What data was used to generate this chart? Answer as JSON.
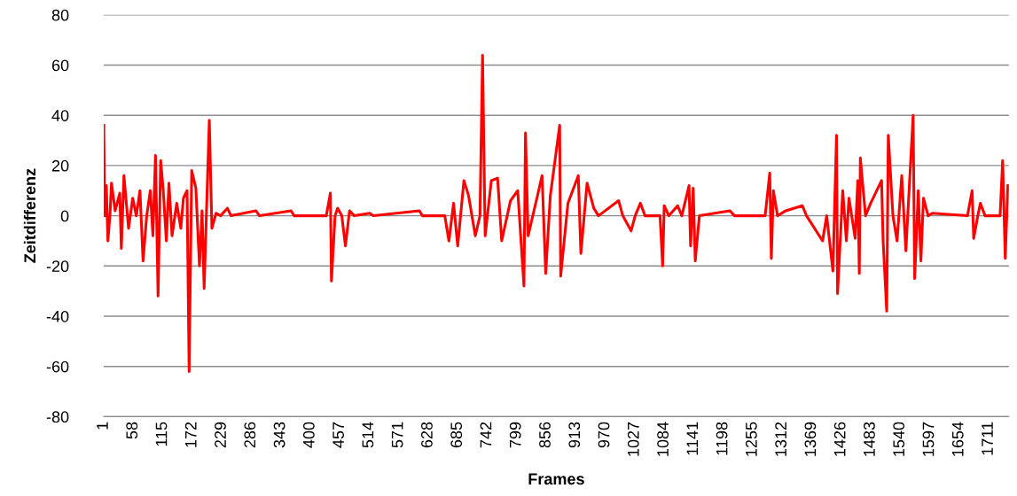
{
  "chart_data": {
    "type": "line",
    "xlabel": "Frames",
    "ylabel": "Zeitdifferenz",
    "xlim": [
      1,
      1750
    ],
    "ylim": [
      -80,
      80
    ],
    "xticks": [
      1,
      58,
      115,
      172,
      229,
      286,
      343,
      400,
      457,
      514,
      571,
      628,
      685,
      742,
      799,
      856,
      913,
      970,
      1027,
      1084,
      1141,
      1198,
      1255,
      1312,
      1369,
      1426,
      1483,
      1540,
      1597,
      1654,
      1711
    ],
    "yticks": [
      -80,
      -60,
      -40,
      -20,
      0,
      20,
      40,
      60,
      80
    ],
    "grid": "y",
    "legend": false,
    "marker": "none",
    "line_style": "solid",
    "series": [
      {
        "color": "#ff0000",
        "x": [
          1,
          3,
          6,
          9,
          13,
          16,
          23,
          32,
          35,
          40,
          49,
          57,
          64,
          71,
          77,
          84,
          91,
          96,
          101,
          106,
          111,
          116,
          122,
          127,
          133,
          142,
          150,
          155,
          162,
          166,
          171,
          179,
          186,
          191,
          195,
          205,
          210,
          218,
          227,
          240,
          247,
          295,
          302,
          363,
          369,
          431,
          439,
          441,
          448,
          453,
          461,
          468,
          476,
          485,
          515,
          522,
          611,
          617,
          660,
          668,
          677,
          685,
          697,
          706,
          719,
          728,
          733,
          738,
          750,
          762,
          770,
          787,
          801,
          813,
          816,
          821,
          838,
          848,
          855,
          864,
          882,
          884,
          898,
          918,
          923,
          935,
          948,
          957,
          996,
          1004,
          1020,
          1028,
          1038,
          1047,
          1076,
          1081,
          1084,
          1093,
          1110,
          1118,
          1132,
          1135,
          1140,
          1144,
          1152,
          1211,
          1220,
          1279,
          1288,
          1291,
          1295,
          1303,
          1319,
          1351,
          1359,
          1390,
          1398,
          1410,
          1417,
          1419,
          1429,
          1436,
          1441,
          1453,
          1458,
          1461,
          1463,
          1473,
          1483,
          1504,
          1507,
          1514,
          1517,
          1526,
          1534,
          1543,
          1551,
          1565,
          1568,
          1575,
          1580,
          1585,
          1594,
          1602,
          1670,
          1679,
          1682,
          1690,
          1695,
          1704,
          1733,
          1738,
          1743,
          1748
        ],
        "values": [
          36,
          0,
          12,
          -10,
          0,
          13,
          2,
          9,
          -13,
          16,
          -5,
          7,
          0,
          10,
          -18,
          0,
          10,
          -8,
          24,
          -32,
          22,
          10,
          -10,
          13,
          -8,
          5,
          -5,
          7,
          10,
          -62,
          18,
          11,
          -20,
          2,
          -29,
          38,
          -5,
          1,
          0,
          3,
          0,
          2,
          0,
          2,
          0,
          0,
          9,
          -26,
          0,
          3,
          0,
          -12,
          2,
          0,
          1,
          0,
          2,
          0,
          0,
          -10,
          5,
          -12,
          14,
          8,
          -8,
          0,
          64,
          -8,
          14,
          15,
          -10,
          6,
          10,
          -28,
          33,
          -8,
          7,
          16,
          -23,
          8,
          36,
          -24,
          5,
          16,
          -15,
          13,
          3,
          0,
          6,
          0,
          -6,
          0,
          5,
          0,
          0,
          -20,
          4,
          0,
          4,
          0,
          12,
          -12,
          11,
          -18,
          0,
          2,
          0,
          0,
          17,
          -17,
          10,
          0,
          2,
          4,
          0,
          -10,
          0,
          -22,
          32,
          -31,
          10,
          -10,
          7,
          -9,
          14,
          -23,
          23,
          0,
          5,
          14,
          -10,
          -38,
          32,
          0,
          -10,
          16,
          -14,
          40,
          -25,
          10,
          -18,
          7,
          0,
          1,
          0,
          10,
          -9,
          0,
          5,
          0,
          0,
          22,
          -17,
          12
        ]
      }
    ]
  }
}
